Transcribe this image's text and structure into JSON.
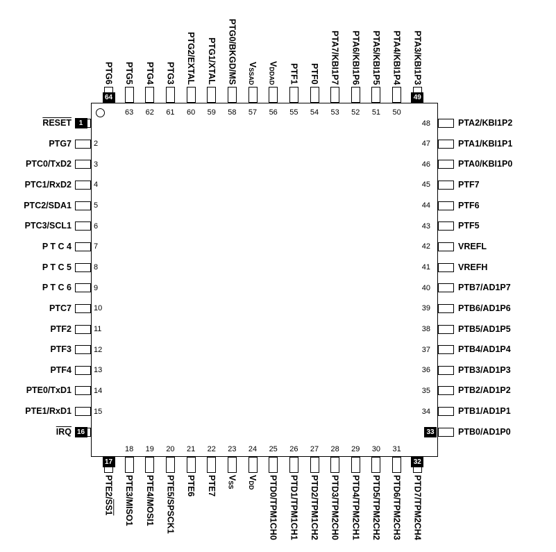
{
  "diagram": {
    "kind": "64-pin package pinout",
    "pin1_indicator": true,
    "sides": {
      "left": [
        {
          "num": "1",
          "boxed": true,
          "parts": [
            {
              "t": "RESET",
              "ol": true
            }
          ]
        },
        {
          "num": "2",
          "parts": [
            {
              "t": "PTG7"
            }
          ]
        },
        {
          "num": "3",
          "parts": [
            {
              "t": "PTC0/TxD2"
            }
          ]
        },
        {
          "num": "4",
          "parts": [
            {
              "t": "PTC1/RxD2"
            }
          ]
        },
        {
          "num": "5",
          "parts": [
            {
              "t": "PTC2/SDA1"
            }
          ]
        },
        {
          "num": "6",
          "parts": [
            {
              "t": "PTC3/SCL1"
            }
          ]
        },
        {
          "num": "7",
          "parts": [
            {
              "t": "P T C 4"
            }
          ]
        },
        {
          "num": "8",
          "parts": [
            {
              "t": "P T C 5"
            }
          ]
        },
        {
          "num": "9",
          "parts": [
            {
              "t": "P T C 6"
            }
          ]
        },
        {
          "num": "10",
          "parts": [
            {
              "t": "PTC7"
            }
          ]
        },
        {
          "num": "11",
          "parts": [
            {
              "t": "PTF2"
            }
          ]
        },
        {
          "num": "12",
          "parts": [
            {
              "t": "PTF3"
            }
          ]
        },
        {
          "num": "13",
          "parts": [
            {
              "t": "PTF4"
            }
          ]
        },
        {
          "num": "14",
          "parts": [
            {
              "t": "PTE0/TxD1"
            }
          ]
        },
        {
          "num": "15",
          "parts": [
            {
              "t": "PTE1/RxD1"
            }
          ]
        },
        {
          "num": "16",
          "boxed": true,
          "parts": [
            {
              "t": "IRQ",
              "ol": true
            }
          ]
        }
      ],
      "top": [
        {
          "num": "64",
          "boxed": true,
          "parts": [
            {
              "t": "PTG6"
            }
          ]
        },
        {
          "num": "63",
          "parts": [
            {
              "t": "PTG5"
            }
          ]
        },
        {
          "num": "62",
          "parts": [
            {
              "t": "PTG4"
            }
          ]
        },
        {
          "num": "61",
          "parts": [
            {
              "t": "PTG3"
            }
          ]
        },
        {
          "num": "60",
          "parts": [
            {
              "t": "PTG2/EXTAL"
            }
          ]
        },
        {
          "num": "59",
          "parts": [
            {
              "t": "PTG1/XTAL"
            }
          ]
        },
        {
          "num": "58",
          "parts": [
            {
              "t": "PTG0/BKGD/MS"
            }
          ]
        },
        {
          "num": "57",
          "parts": [
            {
              "t": "V"
            },
            {
              "t": "SSAD",
              "sub": true
            }
          ]
        },
        {
          "num": "56",
          "parts": [
            {
              "t": "V"
            },
            {
              "t": "DDAD",
              "sub": true
            }
          ]
        },
        {
          "num": "55",
          "parts": [
            {
              "t": "PTF1"
            }
          ]
        },
        {
          "num": "54",
          "parts": [
            {
              "t": "PTF0"
            }
          ]
        },
        {
          "num": "53",
          "parts": [
            {
              "t": "PTA7/KBI1P7"
            }
          ]
        },
        {
          "num": "52",
          "parts": [
            {
              "t": "PTA6/KBI1P6"
            }
          ]
        },
        {
          "num": "51",
          "parts": [
            {
              "t": "PTA5/KBI1P5"
            }
          ]
        },
        {
          "num": "50",
          "parts": [
            {
              "t": "PTA4/KBI1P4"
            }
          ]
        },
        {
          "num": "49",
          "boxed": true,
          "parts": [
            {
              "t": "PTA3/KBI1P3"
            }
          ]
        }
      ],
      "right": [
        {
          "num": "48",
          "parts": [
            {
              "t": "PTA2/KBI1P2"
            }
          ]
        },
        {
          "num": "47",
          "parts": [
            {
              "t": "PTA1/KBI1P1"
            }
          ]
        },
        {
          "num": "46",
          "parts": [
            {
              "t": "PTA0/KBI1P0"
            }
          ]
        },
        {
          "num": "45",
          "parts": [
            {
              "t": "PTF7"
            }
          ]
        },
        {
          "num": "44",
          "parts": [
            {
              "t": "PTF6"
            }
          ]
        },
        {
          "num": "43",
          "parts": [
            {
              "t": "PTF5"
            }
          ]
        },
        {
          "num": "42",
          "parts": [
            {
              "t": "VREFL"
            }
          ]
        },
        {
          "num": "41",
          "parts": [
            {
              "t": "VREFH"
            }
          ]
        },
        {
          "num": "40",
          "parts": [
            {
              "t": "PTB7/AD1P7"
            }
          ]
        },
        {
          "num": "39",
          "parts": [
            {
              "t": "PTB6/AD1P6"
            }
          ]
        },
        {
          "num": "38",
          "parts": [
            {
              "t": "PTB5/AD1P5"
            }
          ]
        },
        {
          "num": "37",
          "parts": [
            {
              "t": "PTB4/AD1P4"
            }
          ]
        },
        {
          "num": "36",
          "parts": [
            {
              "t": "PTB3/AD1P3"
            }
          ]
        },
        {
          "num": "35",
          "parts": [
            {
              "t": "PTB2/AD1P2"
            }
          ]
        },
        {
          "num": "34",
          "parts": [
            {
              "t": "PTB1/AD1P1"
            }
          ]
        },
        {
          "num": "33",
          "boxed": true,
          "parts": [
            {
              "t": "PTB0/AD1P0"
            }
          ]
        }
      ],
      "bottom": [
        {
          "num": "17",
          "boxed": true,
          "parts": [
            {
              "t": "PTE2/"
            },
            {
              "t": "SS1",
              "ol": true
            }
          ]
        },
        {
          "num": "18",
          "parts": [
            {
              "t": "PTE3/MISO1"
            }
          ]
        },
        {
          "num": "19",
          "parts": [
            {
              "t": "PTE4/MOSI1"
            }
          ]
        },
        {
          "num": "20",
          "parts": [
            {
              "t": "PTE5/SPSCK1"
            }
          ]
        },
        {
          "num": "21",
          "parts": [
            {
              "t": "PTE6"
            }
          ]
        },
        {
          "num": "22",
          "parts": [
            {
              "t": "PTE7"
            }
          ]
        },
        {
          "num": "23",
          "parts": [
            {
              "t": "V"
            },
            {
              "t": "SS",
              "sub": true
            }
          ]
        },
        {
          "num": "24",
          "parts": [
            {
              "t": "V"
            },
            {
              "t": "DD",
              "sub": true
            }
          ]
        },
        {
          "num": "25",
          "parts": [
            {
              "t": "PTD0/TPM1CH0"
            }
          ]
        },
        {
          "num": "26",
          "parts": [
            {
              "t": "PTD1/TPM1CH1"
            }
          ]
        },
        {
          "num": "27",
          "parts": [
            {
              "t": "PTD2/TPM1CH2"
            }
          ]
        },
        {
          "num": "28",
          "parts": [
            {
              "t": "PTD3/TPM2CH0"
            }
          ]
        },
        {
          "num": "29",
          "parts": [
            {
              "t": "PTD4/TPM2CH1"
            }
          ]
        },
        {
          "num": "30",
          "parts": [
            {
              "t": "PTD5/TPM2CH2"
            }
          ]
        },
        {
          "num": "31",
          "parts": [
            {
              "t": "PTD6/TPM2CH3"
            }
          ]
        },
        {
          "num": "32",
          "boxed": true,
          "parts": [
            {
              "t": "PTD7/TPM2CH4"
            }
          ]
        }
      ]
    },
    "colors": {
      "ink": "#000000",
      "paper": "#ffffff"
    }
  }
}
